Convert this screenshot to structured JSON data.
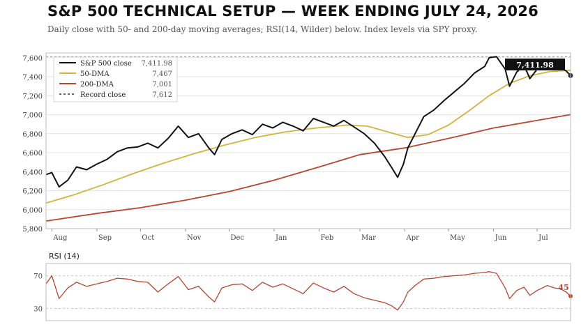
{
  "title": "S&P 500 TECHNICAL SETUP — WEEK ENDING JULY 24, 2026",
  "subtitle": "Daily close with 50- and 200-day moving averages; RSI(14, Wilder) below. Index levels via SPY proxy.",
  "colors": {
    "close": "#111111",
    "dma50": "#d4b33c",
    "dma200": "#b8452f",
    "record": "#888888",
    "rsi": "#b8452f",
    "grid": "#e4e4e4"
  },
  "chart_data": [
    {
      "type": "line",
      "ylim": [
        5800,
        7650
      ],
      "yticks": [
        5800,
        6000,
        6200,
        6400,
        6600,
        6800,
        7000,
        7200,
        7400,
        7600
      ],
      "ytick_labels": [
        "5,800",
        "6,000",
        "6,200",
        "6,400",
        "6,600",
        "6,800",
        "7,000",
        "7,200",
        "7,400",
        "7,600"
      ],
      "x_start": "2025-07-28",
      "x_end": "2026-07-24",
      "month_ticks": [
        {
          "date": "2025-08-01",
          "label": "Aug"
        },
        {
          "date": "2025-09-01",
          "label": "Sep"
        },
        {
          "date": "2025-10-01",
          "label": "Oct"
        },
        {
          "date": "2025-11-01",
          "label": "Nov"
        },
        {
          "date": "2025-12-01",
          "label": "Dec"
        },
        {
          "date": "2026-01-01",
          "label": "Jan"
        },
        {
          "date": "2026-02-01",
          "label": "Feb"
        },
        {
          "date": "2026-03-01",
          "label": "Mar"
        },
        {
          "date": "2026-04-01",
          "label": "Apr"
        },
        {
          "date": "2026-05-01",
          "label": "May"
        },
        {
          "date": "2026-06-01",
          "label": "Jun"
        },
        {
          "date": "2026-07-01",
          "label": "Jul"
        }
      ],
      "record_close": 7612,
      "last_label": "7,411.98",
      "series": [
        {
          "name": "S&P 500 close",
          "legend_value": "7,411.98",
          "points": [
            [
              "2025-07-28",
              6370
            ],
            [
              "2025-08-01",
              6390
            ],
            [
              "2025-08-06",
              6240
            ],
            [
              "2025-08-12",
              6310
            ],
            [
              "2025-08-18",
              6450
            ],
            [
              "2025-08-25",
              6420
            ],
            [
              "2025-09-01",
              6480
            ],
            [
              "2025-09-08",
              6530
            ],
            [
              "2025-09-15",
              6610
            ],
            [
              "2025-09-22",
              6650
            ],
            [
              "2025-09-29",
              6660
            ],
            [
              "2025-10-06",
              6700
            ],
            [
              "2025-10-13",
              6650
            ],
            [
              "2025-10-20",
              6750
            ],
            [
              "2025-10-27",
              6880
            ],
            [
              "2025-11-03",
              6760
            ],
            [
              "2025-11-10",
              6800
            ],
            [
              "2025-11-17",
              6650
            ],
            [
              "2025-11-21",
              6580
            ],
            [
              "2025-11-26",
              6740
            ],
            [
              "2025-12-03",
              6800
            ],
            [
              "2025-12-10",
              6840
            ],
            [
              "2025-12-17",
              6790
            ],
            [
              "2025-12-24",
              6900
            ],
            [
              "2025-12-31",
              6860
            ],
            [
              "2026-01-07",
              6920
            ],
            [
              "2026-01-14",
              6880
            ],
            [
              "2026-01-21",
              6830
            ],
            [
              "2026-01-28",
              6960
            ],
            [
              "2026-02-04",
              6920
            ],
            [
              "2026-02-11",
              6880
            ],
            [
              "2026-02-18",
              6940
            ],
            [
              "2026-02-25",
              6870
            ],
            [
              "2026-03-04",
              6800
            ],
            [
              "2026-03-11",
              6700
            ],
            [
              "2026-03-18",
              6560
            ],
            [
              "2026-03-23",
              6440
            ],
            [
              "2026-03-27",
              6340
            ],
            [
              "2026-03-31",
              6480
            ],
            [
              "2026-04-03",
              6650
            ],
            [
              "2026-04-08",
              6800
            ],
            [
              "2026-04-14",
              6980
            ],
            [
              "2026-04-21",
              7050
            ],
            [
              "2026-04-28",
              7150
            ],
            [
              "2026-05-05",
              7240
            ],
            [
              "2026-05-12",
              7330
            ],
            [
              "2026-05-19",
              7440
            ],
            [
              "2026-05-26",
              7510
            ],
            [
              "2026-05-29",
              7600
            ],
            [
              "2026-06-03",
              7612
            ],
            [
              "2026-06-09",
              7480
            ],
            [
              "2026-06-12",
              7300
            ],
            [
              "2026-06-17",
              7450
            ],
            [
              "2026-06-22",
              7520
            ],
            [
              "2026-06-26",
              7380
            ],
            [
              "2026-07-01",
              7480
            ],
            [
              "2026-07-08",
              7560
            ],
            [
              "2026-07-13",
              7530
            ],
            [
              "2026-07-17",
              7500
            ],
            [
              "2026-07-21",
              7460
            ],
            [
              "2026-07-24",
              7411.98
            ]
          ]
        },
        {
          "name": "50-DMA",
          "legend_value": "7,467",
          "points": [
            [
              "2025-07-28",
              6070
            ],
            [
              "2025-08-15",
              6150
            ],
            [
              "2025-09-05",
              6260
            ],
            [
              "2025-09-26",
              6380
            ],
            [
              "2025-10-17",
              6490
            ],
            [
              "2025-11-07",
              6590
            ],
            [
              "2025-11-28",
              6680
            ],
            [
              "2025-12-19",
              6760
            ],
            [
              "2026-01-09",
              6820
            ],
            [
              "2026-01-30",
              6860
            ],
            [
              "2026-02-20",
              6890
            ],
            [
              "2026-03-06",
              6880
            ],
            [
              "2026-03-20",
              6820
            ],
            [
              "2026-04-03",
              6760
            ],
            [
              "2026-04-17",
              6790
            ],
            [
              "2026-05-01",
              6890
            ],
            [
              "2026-05-15",
              7040
            ],
            [
              "2026-05-29",
              7200
            ],
            [
              "2026-06-12",
              7330
            ],
            [
              "2026-06-26",
              7410
            ],
            [
              "2026-07-10",
              7455
            ],
            [
              "2026-07-24",
              7467
            ]
          ]
        },
        {
          "name": "200-DMA",
          "legend_value": "7,001",
          "points": [
            [
              "2025-07-28",
              5880
            ],
            [
              "2025-09-01",
              5960
            ],
            [
              "2025-10-01",
              6020
            ],
            [
              "2025-11-01",
              6100
            ],
            [
              "2025-12-01",
              6190
            ],
            [
              "2026-01-01",
              6310
            ],
            [
              "2026-02-01",
              6450
            ],
            [
              "2026-03-01",
              6580
            ],
            [
              "2026-04-01",
              6650
            ],
            [
              "2026-05-01",
              6750
            ],
            [
              "2026-06-01",
              6860
            ],
            [
              "2026-07-01",
              6940
            ],
            [
              "2026-07-24",
              7001
            ]
          ]
        },
        {
          "name": "Record close",
          "legend_value": "7,612",
          "points": [
            [
              "2025-07-28",
              7612
            ],
            [
              "2026-07-24",
              7612
            ]
          ]
        }
      ]
    },
    {
      "type": "line",
      "title": "RSI (14)",
      "ylim": [
        15,
        85
      ],
      "yticks": [
        30,
        70
      ],
      "ytick_labels": [
        "30",
        "70"
      ],
      "last_label": "45",
      "series": [
        {
          "name": "RSI (14)",
          "points": [
            [
              "2025-07-28",
              60
            ],
            [
              "2025-08-01",
              70
            ],
            [
              "2025-08-06",
              42
            ],
            [
              "2025-08-12",
              55
            ],
            [
              "2025-08-18",
              62
            ],
            [
              "2025-08-25",
              57
            ],
            [
              "2025-09-01",
              60
            ],
            [
              "2025-09-08",
              63
            ],
            [
              "2025-09-15",
              67
            ],
            [
              "2025-09-22",
              66
            ],
            [
              "2025-09-29",
              63
            ],
            [
              "2025-10-06",
              62
            ],
            [
              "2025-10-13",
              50
            ],
            [
              "2025-10-20",
              60
            ],
            [
              "2025-10-27",
              69
            ],
            [
              "2025-11-03",
              53
            ],
            [
              "2025-11-10",
              57
            ],
            [
              "2025-11-17",
              44
            ],
            [
              "2025-11-21",
              38
            ],
            [
              "2025-11-26",
              55
            ],
            [
              "2025-12-03",
              59
            ],
            [
              "2025-12-10",
              60
            ],
            [
              "2025-12-17",
              52
            ],
            [
              "2025-12-24",
              62
            ],
            [
              "2025-12-31",
              56
            ],
            [
              "2026-01-07",
              60
            ],
            [
              "2026-01-14",
              54
            ],
            [
              "2026-01-21",
              48
            ],
            [
              "2026-01-28",
              61
            ],
            [
              "2026-02-04",
              55
            ],
            [
              "2026-02-11",
              50
            ],
            [
              "2026-02-18",
              57
            ],
            [
              "2026-02-25",
              48
            ],
            [
              "2026-03-04",
              43
            ],
            [
              "2026-03-11",
              40
            ],
            [
              "2026-03-18",
              37
            ],
            [
              "2026-03-23",
              33
            ],
            [
              "2026-03-27",
              28
            ],
            [
              "2026-03-31",
              38
            ],
            [
              "2026-04-03",
              50
            ],
            [
              "2026-04-08",
              58
            ],
            [
              "2026-04-14",
              66
            ],
            [
              "2026-04-21",
              67
            ],
            [
              "2026-04-28",
              69
            ],
            [
              "2026-05-05",
              70
            ],
            [
              "2026-05-12",
              71
            ],
            [
              "2026-05-19",
              73
            ],
            [
              "2026-05-26",
              74
            ],
            [
              "2026-05-29",
              75
            ],
            [
              "2026-06-03",
              73
            ],
            [
              "2026-06-09",
              55
            ],
            [
              "2026-06-12",
              42
            ],
            [
              "2026-06-17",
              52
            ],
            [
              "2026-06-22",
              56
            ],
            [
              "2026-06-26",
              46
            ],
            [
              "2026-07-01",
              52
            ],
            [
              "2026-07-08",
              58
            ],
            [
              "2026-07-13",
              55
            ],
            [
              "2026-07-17",
              54
            ],
            [
              "2026-07-21",
              50
            ],
            [
              "2026-07-24",
              45
            ]
          ]
        }
      ]
    }
  ]
}
